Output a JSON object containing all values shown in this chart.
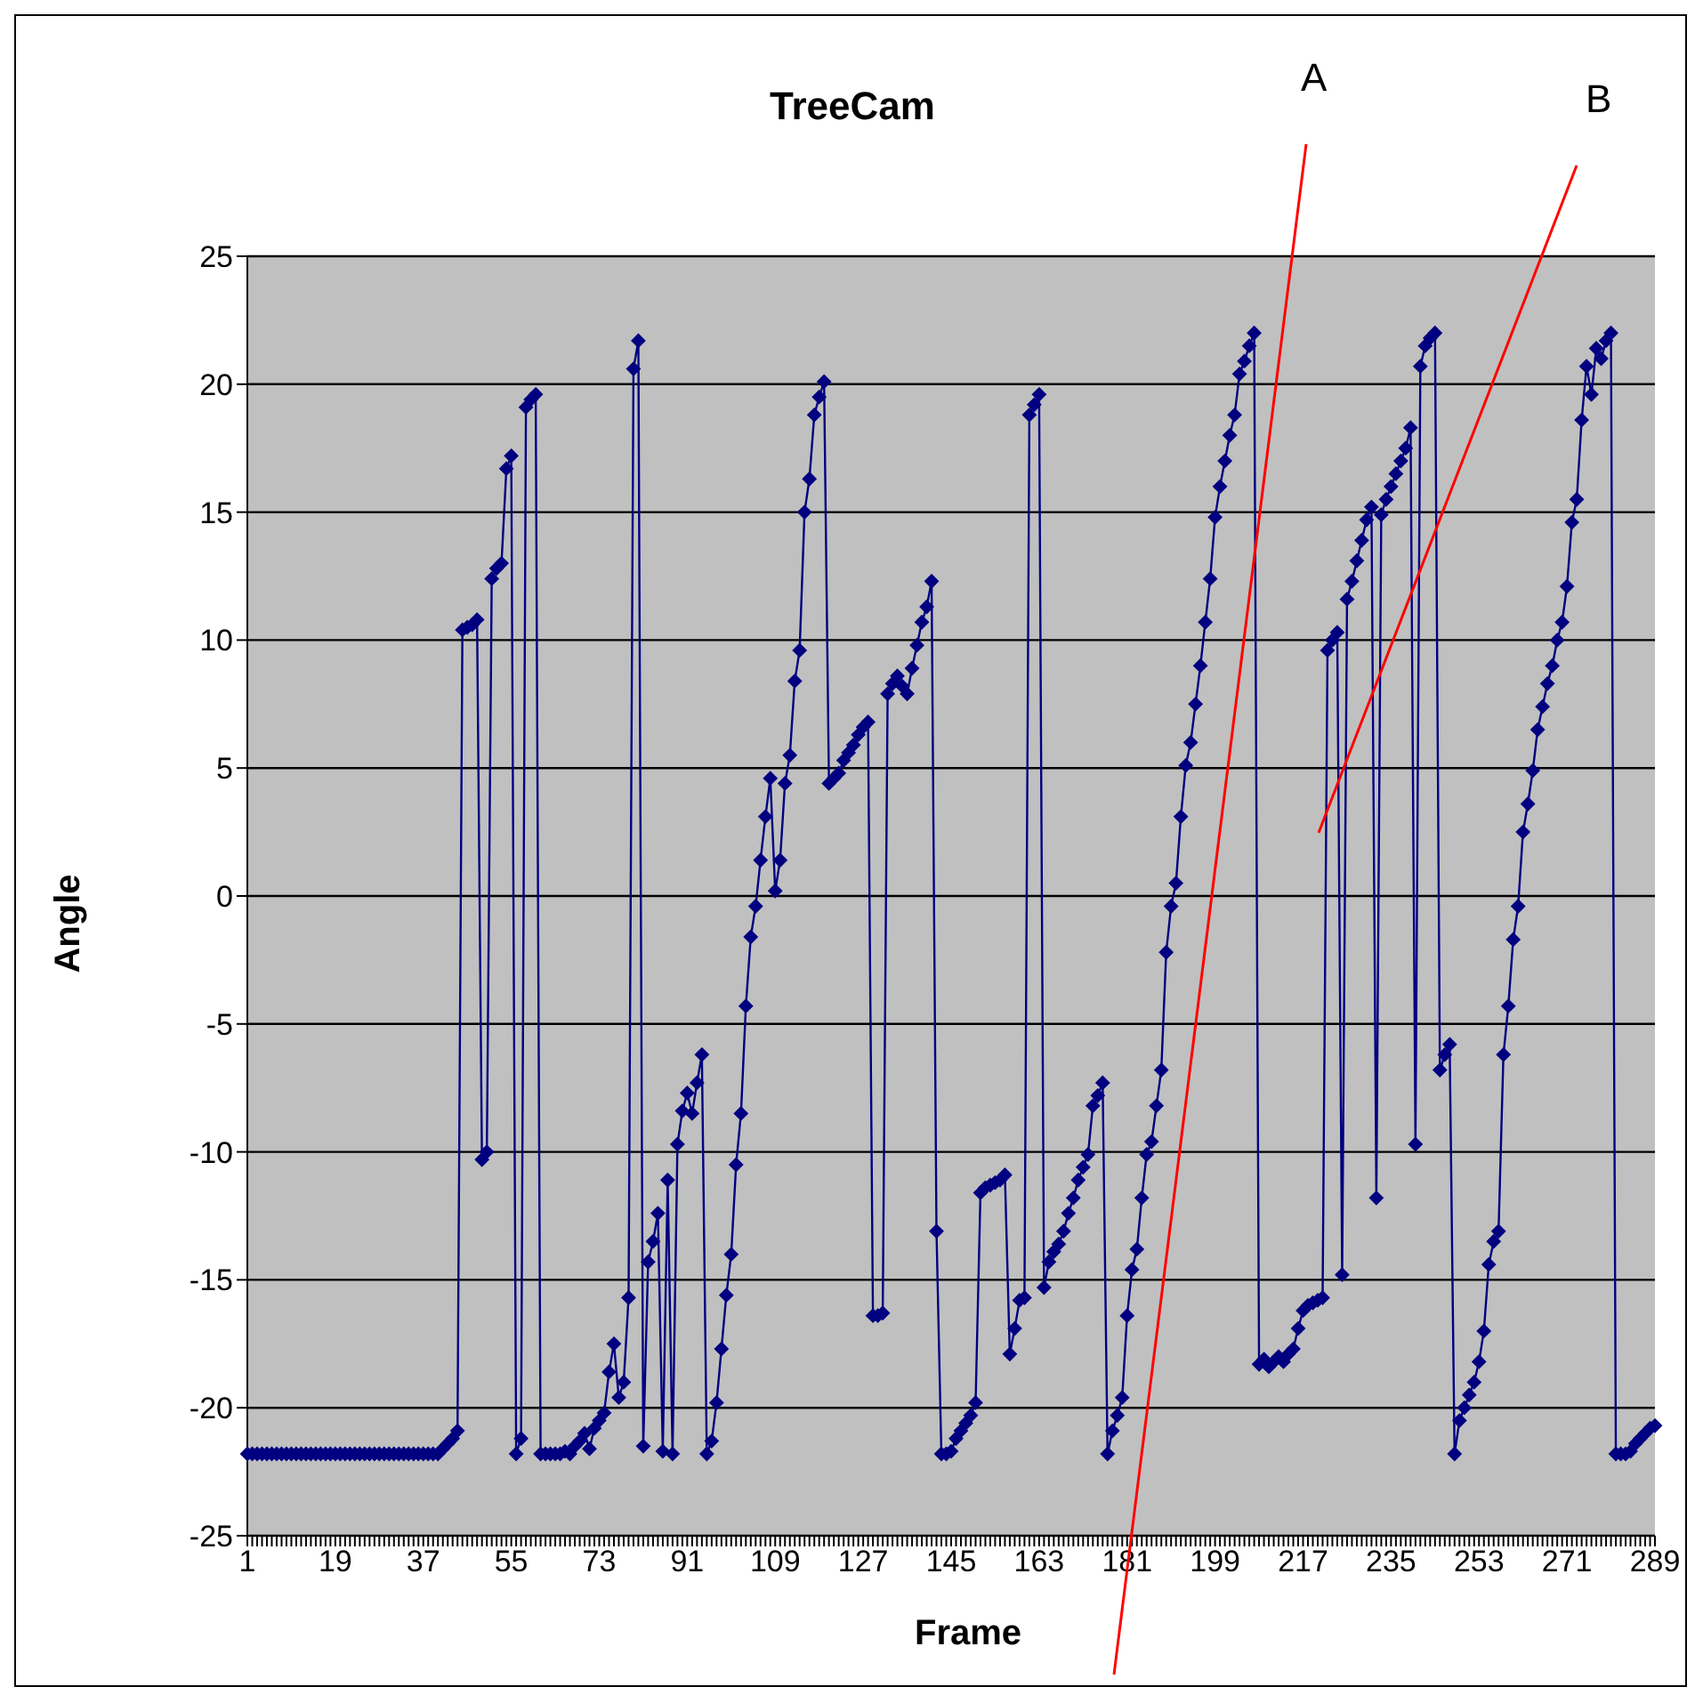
{
  "chart_data": {
    "type": "line",
    "title": "TreeCam",
    "xlabel": "Frame",
    "ylabel": "Angle",
    "annotations": [
      "A",
      "B"
    ],
    "categories": [
      "1",
      null,
      null,
      null,
      null,
      null,
      null,
      null,
      null,
      null,
      null,
      null,
      null,
      null,
      null,
      null,
      null,
      null,
      "19",
      null,
      null,
      null,
      null,
      null,
      null,
      null,
      null,
      null,
      null,
      null,
      null,
      null,
      null,
      null,
      null,
      null,
      "37",
      null,
      null,
      null,
      null,
      null,
      null,
      null,
      null,
      null,
      null,
      null,
      null,
      null,
      null,
      null,
      null,
      null,
      "55",
      null,
      null,
      null,
      null,
      null,
      null,
      null,
      null,
      null,
      null,
      null,
      null,
      null,
      null,
      null,
      null,
      null,
      "73",
      null,
      null,
      null,
      null,
      null,
      null,
      null,
      null,
      null,
      null,
      null,
      null,
      null,
      null,
      null,
      null,
      null,
      "91",
      null,
      null,
      null,
      null,
      null,
      null,
      null,
      null,
      null,
      null,
      null,
      null,
      null,
      null,
      null,
      null,
      null,
      "109",
      null,
      null,
      null,
      null,
      null,
      null,
      null,
      null,
      null,
      null,
      null,
      null,
      null,
      null,
      null,
      null,
      null,
      "127",
      null,
      null,
      null,
      null,
      null,
      null,
      null,
      null,
      null,
      null,
      null,
      null,
      null,
      null,
      null,
      null,
      null,
      "145",
      null,
      null,
      null,
      null,
      null,
      null,
      null,
      null,
      null,
      null,
      null,
      null,
      null,
      null,
      null,
      null,
      null,
      "163",
      null,
      null,
      null,
      null,
      null,
      null,
      null,
      null,
      null,
      null,
      null,
      null,
      null,
      null,
      null,
      null,
      null,
      "181",
      null,
      null,
      null,
      null,
      null,
      null,
      null,
      null,
      null,
      null,
      null,
      null,
      null,
      null,
      null,
      null,
      null,
      "199",
      null,
      null,
      null,
      null,
      null,
      null,
      null,
      null,
      null,
      null,
      null,
      null,
      null,
      null,
      null,
      null,
      null,
      "217",
      null,
      null,
      null,
      null,
      null,
      null,
      null,
      null,
      null,
      null,
      null,
      null,
      null,
      null,
      null,
      null,
      null,
      "235",
      null,
      null,
      null,
      null,
      null,
      null,
      null,
      null,
      null,
      null,
      null,
      null,
      null,
      null,
      null,
      null,
      null,
      "253",
      null,
      null,
      null,
      null,
      null,
      null,
      null,
      null,
      null,
      null,
      null,
      null,
      null,
      null,
      null,
      null,
      null,
      "271",
      null,
      null,
      null,
      null,
      null,
      null,
      null,
      null,
      null,
      null,
      null,
      null,
      null,
      null,
      null,
      null,
      null,
      "289"
    ],
    "series": [
      {
        "color": "#000080",
        "values": [
          -21.8,
          -21.8,
          -21.8,
          -21.8,
          -21.8,
          -21.8,
          -21.8,
          -21.8,
          -21.8,
          -21.8,
          -21.8,
          -21.8,
          -21.8,
          -21.8,
          -21.8,
          -21.8,
          -21.8,
          -21.8,
          -21.8,
          -21.8,
          -21.8,
          -21.8,
          -21.8,
          -21.8,
          -21.8,
          -21.8,
          -21.8,
          -21.8,
          -21.8,
          -21.8,
          -21.8,
          -21.8,
          -21.8,
          -21.8,
          -21.8,
          -21.8,
          -21.8,
          -21.8,
          -21.8,
          -21.8,
          -21.6,
          -21.4,
          -21.2,
          -20.9,
          10.4,
          10.5,
          10.6,
          10.8,
          -10.3,
          -10.0,
          12.4,
          12.8,
          13.0,
          16.7,
          17.2,
          -21.8,
          -21.2,
          19.1,
          19.4,
          19.6,
          -21.8,
          -21.8,
          -21.8,
          -21.8,
          -21.8,
          -21.7,
          -21.8,
          -21.5,
          -21.3,
          -21.0,
          -21.6,
          -20.8,
          -20.5,
          -20.2,
          -18.6,
          -17.5,
          -19.6,
          -19.0,
          -15.7,
          20.6,
          21.7,
          -21.5,
          -14.3,
          -13.5,
          -12.4,
          -21.7,
          -11.1,
          -21.8,
          -9.7,
          -8.4,
          -7.7,
          -8.5,
          -7.3,
          -6.2,
          -21.8,
          -21.3,
          -19.8,
          -17.7,
          -15.6,
          -14.0,
          -10.5,
          -8.5,
          -4.3,
          -1.6,
          -0.4,
          1.4,
          3.1,
          4.6,
          0.2,
          1.4,
          4.4,
          5.5,
          8.4,
          9.6,
          15.0,
          16.3,
          18.8,
          19.5,
          20.1,
          4.4,
          4.6,
          4.8,
          5.3,
          5.6,
          5.9,
          6.3,
          6.6,
          6.8,
          -16.4,
          -16.4,
          -16.3,
          7.9,
          8.3,
          8.6,
          8.2,
          7.9,
          8.9,
          9.8,
          10.7,
          11.3,
          12.3,
          -13.1,
          -21.8,
          -21.8,
          -21.7,
          -21.2,
          -20.9,
          -20.6,
          -20.3,
          -19.8,
          -11.6,
          -11.4,
          -11.3,
          -11.2,
          -11.1,
          -10.9,
          -17.9,
          -16.9,
          -15.8,
          -15.7,
          18.8,
          19.2,
          19.6,
          -15.3,
          -14.3,
          -13.9,
          -13.6,
          -13.1,
          -12.4,
          -11.8,
          -11.1,
          -10.6,
          -10.1,
          -8.2,
          -7.8,
          -7.3,
          -21.8,
          -20.9,
          -20.3,
          -19.6,
          -16.4,
          -14.6,
          -13.8,
          -11.8,
          -10.1,
          -9.6,
          -8.2,
          -6.8,
          -2.2,
          -0.4,
          0.5,
          3.1,
          5.1,
          6.0,
          7.5,
          9.0,
          10.7,
          12.4,
          14.8,
          16.0,
          17.0,
          18.0,
          18.8,
          20.4,
          20.9,
          21.5,
          22.0,
          -18.3,
          -18.1,
          -18.4,
          -18.2,
          -18.0,
          -18.2,
          -17.9,
          -17.7,
          -16.9,
          -16.2,
          -16.0,
          -15.9,
          -15.8,
          -15.7,
          9.6,
          10.0,
          10.3,
          -14.8,
          11.6,
          12.3,
          13.1,
          13.9,
          14.7,
          15.2,
          -11.8,
          14.9,
          15.5,
          16.0,
          16.5,
          17.0,
          17.5,
          18.3,
          -9.7,
          20.7,
          21.5,
          21.8,
          22.0,
          -6.8,
          -6.2,
          -5.8,
          -21.8,
          -20.5,
          -20.0,
          -19.5,
          -19.0,
          -18.2,
          -17.0,
          -14.4,
          -13.5,
          -13.1,
          -6.2,
          -4.3,
          -1.7,
          -0.4,
          2.5,
          3.6,
          4.9,
          6.5,
          7.4,
          8.3,
          9.0,
          10.0,
          10.7,
          12.1,
          14.6,
          15.5,
          18.6,
          20.7,
          19.6,
          21.4,
          21.0,
          21.7,
          22.0,
          -21.8,
          -21.8,
          -21.8,
          -21.7,
          -21.4,
          -21.2,
          -21.0,
          -20.8,
          -20.7
        ]
      }
    ],
    "ylim": [
      -25,
      25
    ],
    "yticks": [
      25,
      20,
      15,
      10,
      5,
      0,
      -5,
      -10,
      -15,
      -20,
      -25
    ],
    "grid": "y",
    "marker": "diamond"
  }
}
